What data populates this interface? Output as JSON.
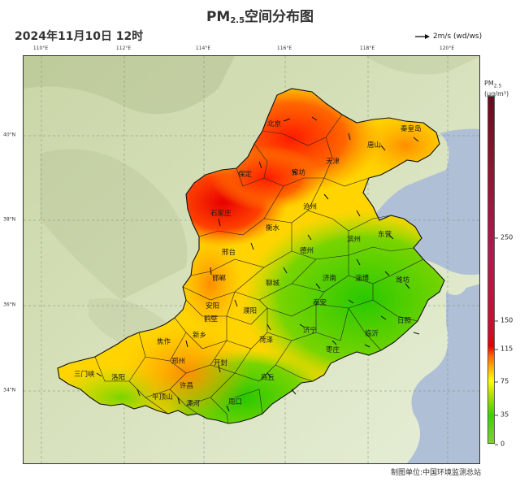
{
  "title_main": "PM",
  "title_sub": "2.5",
  "title_rest": "空间分布图",
  "datetime": "2024年11月10日 12时",
  "wind_legend": "2m/s (wd/ws)",
  "lon_ticks": [
    "110°E",
    "112°E",
    "114°E",
    "116°E",
    "118°E",
    "120°E"
  ],
  "lat_ticks": [
    "40°N",
    "38°N",
    "36°N",
    "34°N"
  ],
  "colorbar": {
    "title_main": "PM",
    "title_sub": "2.5",
    "unit": "(μg/m³)",
    "ticks": [
      "0",
      "35",
      "75",
      "115",
      "150",
      "250"
    ]
  },
  "cities": [
    "北京",
    "秦皇岛",
    "唐山",
    "天津",
    "保定",
    "廊坊",
    "石家庄",
    "沧州",
    "衡水",
    "东营",
    "滨州",
    "德州",
    "邢台",
    "邯郸",
    "聊城",
    "济南",
    "淄博",
    "潍坊",
    "安阳",
    "濮阳",
    "泰安",
    "日照",
    "新乡",
    "鹤壁",
    "济宁",
    "临沂",
    "焦作",
    "菏泽",
    "枣庄",
    "郑州",
    "开封",
    "三门峡",
    "洛阳",
    "商丘",
    "许昌",
    "平顶山",
    "漯河",
    "周口"
  ],
  "credit": "制图单位:中国环境监测总站",
  "colors": {
    "sea": "#aebfd6",
    "terrain": "#d3deb4",
    "clean": "#4cd11c",
    "moderate": "#ffe600",
    "polluted": "#ff3000"
  }
}
